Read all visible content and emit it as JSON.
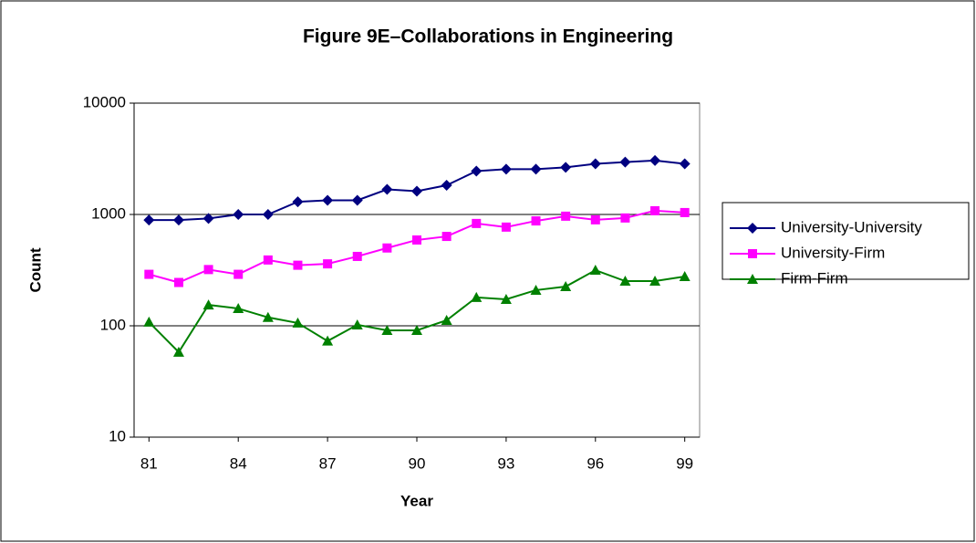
{
  "chart_data": {
    "type": "line",
    "title": "Figure 9E–Collaborations in Engineering",
    "x_label": "Year",
    "y_label": "Count",
    "x": [
      81,
      82,
      83,
      84,
      85,
      86,
      87,
      88,
      89,
      90,
      91,
      92,
      93,
      94,
      95,
      96,
      97,
      98,
      99
    ],
    "xlim": [
      80.5,
      99.5
    ],
    "xticks": [
      81,
      84,
      87,
      90,
      93,
      96,
      99
    ],
    "ylim": [
      10,
      10000
    ],
    "yticks": [
      10,
      100,
      1000,
      10000
    ],
    "yscale": "log",
    "grid": true,
    "legend": "right",
    "series": [
      {
        "name": "University-University",
        "color": "#000080",
        "marker": "diamond",
        "values": [
          890,
          890,
          920,
          1000,
          1000,
          1300,
          1340,
          1340,
          1680,
          1620,
          1830,
          2450,
          2550,
          2550,
          2650,
          2850,
          2950,
          3050,
          2850
        ]
      },
      {
        "name": "University-Firm",
        "color": "#ff00ff",
        "marker": "square",
        "values": [
          290,
          245,
          320,
          290,
          390,
          350,
          360,
          420,
          500,
          590,
          635,
          830,
          770,
          875,
          965,
          895,
          930,
          1080,
          1040
        ]
      },
      {
        "name": "Firm-Firm",
        "color": "#008000",
        "marker": "triangle",
        "values": [
          108,
          58,
          154,
          143,
          119,
          106,
          73,
          102,
          91,
          91,
          112,
          180,
          173,
          209,
          225,
          316,
          252,
          252,
          277
        ]
      }
    ]
  }
}
